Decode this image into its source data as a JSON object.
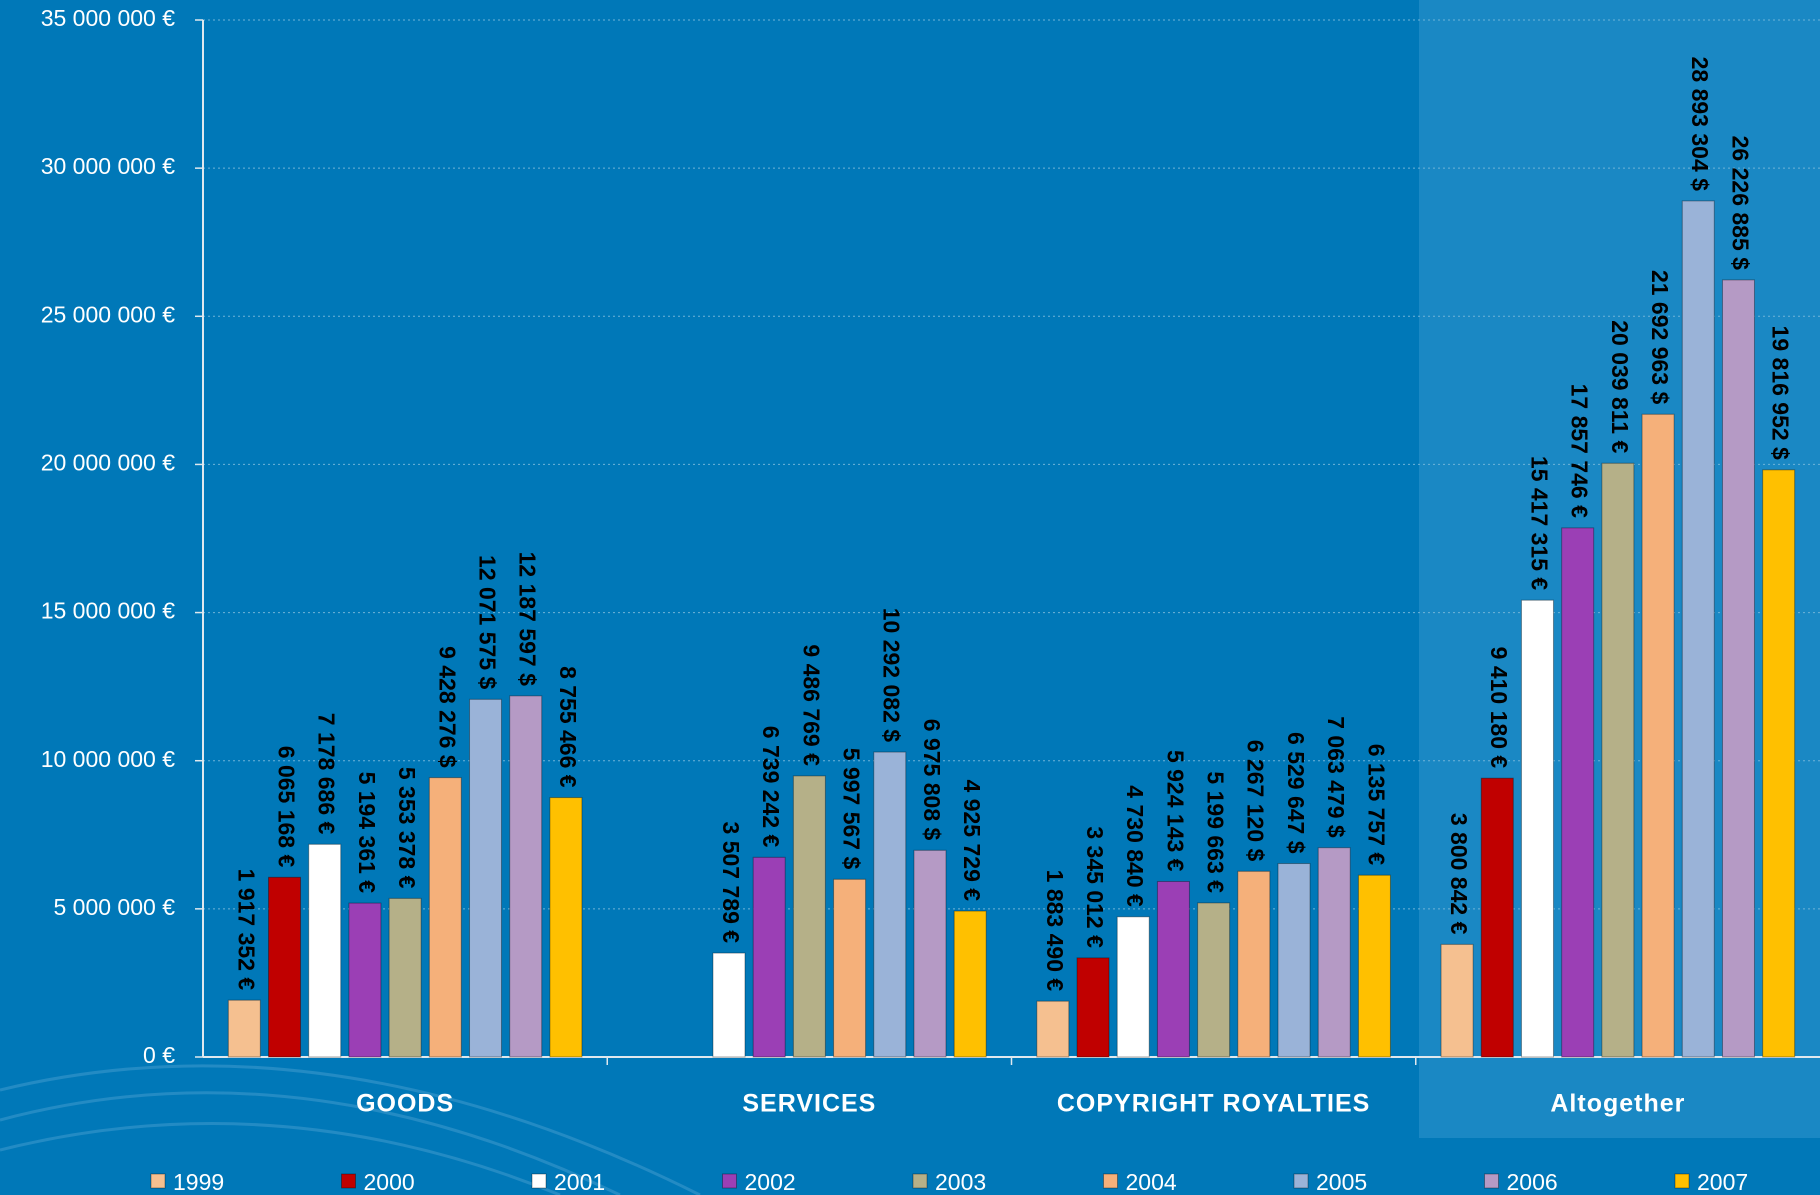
{
  "chart_data": {
    "type": "bar",
    "categories": [
      "GOODS",
      "SERVICES",
      "COPYRIGHT ROYALTIES",
      "Altogether"
    ],
    "ylim": [
      0,
      35000000
    ],
    "yticks": [
      {
        "value": 0,
        "label": "0 €"
      },
      {
        "value": 5000000,
        "label": "5 000 000 €"
      },
      {
        "value": 10000000,
        "label": "10 000 000 €"
      },
      {
        "value": 15000000,
        "label": "15 000 000 €"
      },
      {
        "value": 20000000,
        "label": "20 000 000 €"
      },
      {
        "value": 25000000,
        "label": "25 000 000 €"
      },
      {
        "value": 30000000,
        "label": "30 000 000 €"
      },
      {
        "value": 35000000,
        "label": "35 000 000 €"
      }
    ],
    "grid": true,
    "legend": "bottom",
    "series": [
      {
        "name": "1999",
        "color": "#f5c090",
        "values": [
          1917352,
          null,
          1883490,
          3800842
        ],
        "value_labels": [
          "1 917 352 €",
          null,
          "1 883 490 €",
          "3 800 842 €"
        ]
      },
      {
        "name": "2000",
        "color": "#c00000",
        "values": [
          6065168,
          null,
          3345012,
          9410180
        ],
        "value_labels": [
          "6 065 168 €",
          null,
          "3 345 012 €",
          "9 410 180 €"
        ]
      },
      {
        "name": "2001",
        "color": "#ffffff",
        "values": [
          7178686,
          3507789,
          4730840,
          15417315
        ],
        "value_labels": [
          "7 178 686 €",
          "3 507 789 €",
          "4 730 840 €",
          "15 417 315 €"
        ]
      },
      {
        "name": "2002",
        "color": "#9b3fb5",
        "values": [
          5194361,
          6739242,
          5924143,
          17857746
        ],
        "value_labels": [
          "5 194 361 €",
          "6 739 242 €",
          "5 924 143 €",
          "17 857 746 €"
        ]
      },
      {
        "name": "2003",
        "color": "#b5b088",
        "values": [
          5353378,
          9486769,
          5199663,
          20039811
        ],
        "value_labels": [
          "5 353 378 €",
          "9 486 769 €",
          "5 199 663 €",
          "20 039 811 €"
        ]
      },
      {
        "name": "2004",
        "color": "#f5b07a",
        "values": [
          9428276,
          5997567,
          6267120,
          21692963
        ],
        "value_labels": [
          "9 428 276 $",
          "5 997 567 $",
          "6 267 120 $",
          "21 692 963 $"
        ]
      },
      {
        "name": "2005",
        "color": "#9ab3d8",
        "values": [
          12071575,
          10292082,
          6529647,
          28893304
        ],
        "value_labels": [
          "12 071 575 $",
          "10 292 082 $",
          "6 529 647 $",
          "28 893 304 $"
        ]
      },
      {
        "name": "2006",
        "color": "#b59ac5",
        "values": [
          12187597,
          6975808,
          7063479,
          26226885
        ],
        "value_labels": [
          "12 187 597 $",
          "6 975 808 $",
          "7 063 479 $",
          "26 226 885 $"
        ]
      },
      {
        "name": "2007",
        "color": "#ffc000",
        "values": [
          8755466,
          4925729,
          6135757,
          19816952
        ],
        "value_labels": [
          "8 755 466 €",
          "4 925 729 €",
          "6 135 757 €",
          "19 816 952 $"
        ]
      }
    ]
  }
}
